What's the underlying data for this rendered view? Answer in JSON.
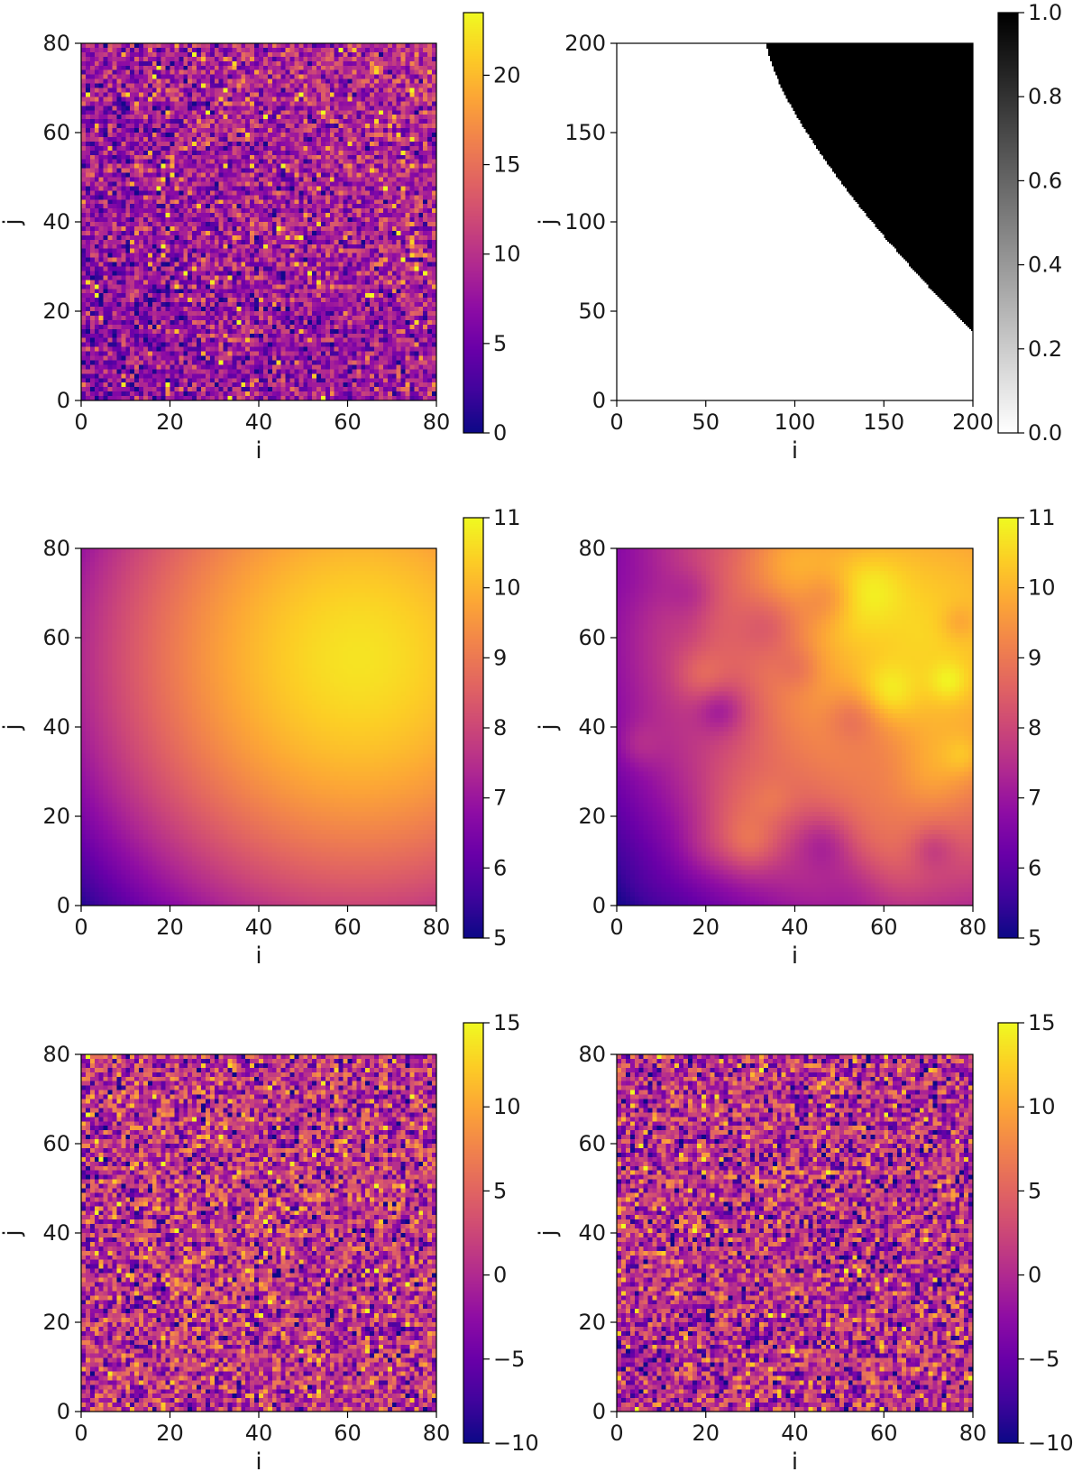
{
  "figure": {
    "panel_count": 6,
    "layout": "3 rows x 2 columns"
  },
  "chart_data": [
    {
      "id": "panel-top-left",
      "type": "heatmap",
      "title": "",
      "xlabel": "i",
      "ylabel": "j",
      "xlim": [
        0,
        80
      ],
      "ylim": [
        0,
        80
      ],
      "xticks": [
        "0",
        "20",
        "40",
        "60",
        "80"
      ],
      "yticks": [
        "0",
        "20",
        "40",
        "60",
        "80"
      ],
      "grid_size": [
        80,
        80
      ],
      "pattern": "random noise, mean rising toward upper-right",
      "noise_mean_low": 6,
      "noise_mean_high": 10,
      "noise_spread": 7,
      "colormap": "plasma",
      "colorbar": {
        "min": 0,
        "max": 23.5,
        "ticks": [
          "0",
          "5",
          "10",
          "15",
          "20"
        ]
      }
    },
    {
      "id": "panel-top-right",
      "type": "heatmap",
      "title": "",
      "xlabel": "i",
      "ylabel": "j",
      "xlim": [
        0,
        200
      ],
      "ylim": [
        0,
        200
      ],
      "xticks": [
        "0",
        "50",
        "100",
        "150",
        "200"
      ],
      "yticks": [
        "0",
        "50",
        "100",
        "150",
        "200"
      ],
      "grid_size": [
        200,
        200
      ],
      "pattern": "binary mask: 1 where (i - 0)^2 + (j - 0)^2 exceeds radius, region in upper-right",
      "mask_boundary": {
        "at_j_200_i": 84,
        "at_i_200_j": 38
      },
      "colormap": "gray_r",
      "colorbar": {
        "min": 0.0,
        "max": 1.0,
        "ticks": [
          "0.0",
          "0.2",
          "0.4",
          "0.6",
          "0.8",
          "1.0"
        ]
      }
    },
    {
      "id": "panel-middle-left",
      "type": "heatmap",
      "title": "",
      "xlabel": "i",
      "ylabel": "j",
      "xlim": [
        0,
        80
      ],
      "ylim": [
        0,
        80
      ],
      "xticks": [
        "0",
        "20",
        "40",
        "60",
        "80"
      ],
      "yticks": [
        "0",
        "20",
        "40",
        "60",
        "80"
      ],
      "grid_size": [
        80,
        80
      ],
      "pattern": "smooth field, minimum 5.2 at origin, maximum 10.7 near (62, 55)",
      "colormap": "plasma",
      "colorbar": {
        "min": 5,
        "max": 11,
        "ticks": [
          "5",
          "6",
          "7",
          "8",
          "9",
          "10",
          "11"
        ]
      }
    },
    {
      "id": "panel-middle-right",
      "type": "heatmap",
      "title": "",
      "xlabel": "i",
      "ylabel": "j",
      "xlim": [
        0,
        80
      ],
      "ylim": [
        0,
        80
      ],
      "xticks": [
        "0",
        "20",
        "40",
        "60",
        "80"
      ],
      "yticks": [
        "0",
        "20",
        "40",
        "60",
        "80"
      ],
      "grid_size": [
        80,
        80
      ],
      "pattern": "smooth field with blotchy texture, minimum near origin, maximum about 11 near (68, 60)",
      "colormap": "plasma",
      "colorbar": {
        "min": 5,
        "max": 11,
        "ticks": [
          "5",
          "6",
          "7",
          "8",
          "9",
          "10",
          "11"
        ]
      }
    },
    {
      "id": "panel-bottom-left",
      "type": "heatmap",
      "title": "",
      "xlabel": "i",
      "ylabel": "j",
      "xlim": [
        0,
        80
      ],
      "ylim": [
        0,
        80
      ],
      "xticks": [
        "0",
        "20",
        "40",
        "60",
        "80"
      ],
      "yticks": [
        "0",
        "20",
        "40",
        "60",
        "80"
      ],
      "grid_size": [
        80,
        80
      ],
      "pattern": "zero-mean random noise",
      "noise_mean": 1,
      "noise_spread": 5,
      "colormap": "plasma",
      "colorbar": {
        "min": -10,
        "max": 15,
        "ticks": [
          "−10",
          "−5",
          "0",
          "5",
          "10",
          "15"
        ]
      }
    },
    {
      "id": "panel-bottom-right",
      "type": "heatmap",
      "title": "",
      "xlabel": "i",
      "ylabel": "j",
      "xlim": [
        0,
        80
      ],
      "ylim": [
        0,
        80
      ],
      "xticks": [
        "0",
        "20",
        "40",
        "60",
        "80"
      ],
      "yticks": [
        "0",
        "20",
        "40",
        "60",
        "80"
      ],
      "grid_size": [
        80,
        80
      ],
      "pattern": "zero-mean random noise",
      "noise_mean": 0.5,
      "noise_spread": 5,
      "colormap": "plasma",
      "colorbar": {
        "min": -10,
        "max": 15,
        "ticks": [
          "−10",
          "−5",
          "0",
          "5",
          "10",
          "15"
        ]
      }
    }
  ],
  "colors": {
    "plasma": [
      "#0d0887",
      "#41049d",
      "#6a00a8",
      "#8f0da4",
      "#b12a90",
      "#cc4778",
      "#e16462",
      "#f1834c",
      "#fca636",
      "#fcce25",
      "#f0f921"
    ],
    "mask_on": "#000000",
    "mask_off": "#ffffff"
  }
}
